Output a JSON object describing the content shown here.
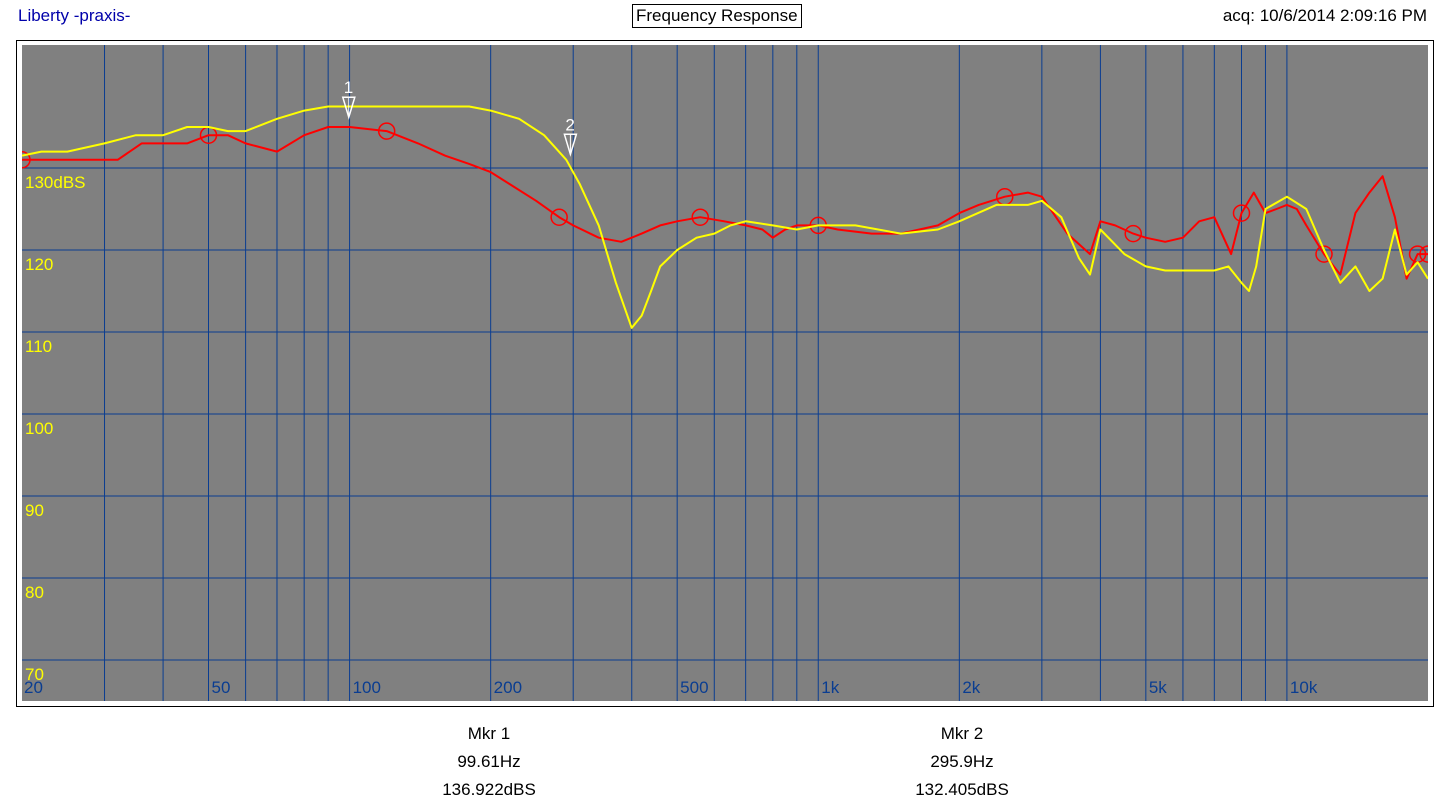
{
  "header": {
    "app_title": "Liberty -praxis-",
    "chart_title": "Frequency Response",
    "acquired": "acq: 10/6/2014 2:09:16 PM"
  },
  "chart_data": {
    "type": "line",
    "title": "Frequency Response",
    "x_scale": "log",
    "xlim": [
      20,
      20000
    ],
    "ylim": [
      65,
      145
    ],
    "grid": true,
    "x_ticks": [
      {
        "value": 20,
        "label": "20"
      },
      {
        "value": 50,
        "label": "50"
      },
      {
        "value": 100,
        "label": "100"
      },
      {
        "value": 200,
        "label": "200"
      },
      {
        "value": 500,
        "label": "500"
      },
      {
        "value": 1000,
        "label": "1k"
      },
      {
        "value": 2000,
        "label": "2k"
      },
      {
        "value": 5000,
        "label": "5k"
      },
      {
        "value": 10000,
        "label": "10k"
      }
    ],
    "y_ticks": [
      {
        "value": 130,
        "label": "130dBS"
      },
      {
        "value": 120,
        "label": "120"
      },
      {
        "value": 110,
        "label": "110"
      },
      {
        "value": 100,
        "label": "100"
      },
      {
        "value": 90,
        "label": "90"
      },
      {
        "value": 80,
        "label": "80"
      },
      {
        "value": 70,
        "label": "70"
      }
    ],
    "colors": {
      "background": "#808080",
      "grid": "#0a3d91",
      "y_tick_text": "#ffff00",
      "x_tick_text": "#0a3d91",
      "marker": "#ffffff"
    },
    "series": [
      {
        "color": "#ff0000",
        "marker_symbol": "circle",
        "x": [
          20,
          24,
          28,
          32,
          36,
          40,
          45,
          50,
          55,
          60,
          70,
          80,
          90,
          100,
          120,
          140,
          160,
          180,
          200,
          220,
          250,
          280,
          300,
          340,
          380,
          420,
          460,
          500,
          560,
          630,
          700,
          760,
          800,
          850,
          900,
          1000,
          1100,
          1300,
          1500,
          1800,
          2000,
          2200,
          2500,
          2800,
          3000,
          3400,
          3800,
          4000,
          4300,
          4700,
          5000,
          5500,
          6000,
          6500,
          7000,
          7600,
          8000,
          8500,
          9000,
          9500,
          10000,
          10500,
          11000,
          12000,
          13000,
          14000,
          15000,
          16000,
          17000,
          18000,
          19000,
          20000
        ],
        "y": [
          131,
          131,
          131,
          131,
          133,
          133,
          133,
          134,
          134,
          133,
          132,
          134,
          135,
          135,
          134.5,
          133,
          131.5,
          130.5,
          129.5,
          128,
          126,
          124,
          123,
          121.5,
          121,
          122,
          123,
          123.5,
          124,
          123.5,
          123,
          122.5,
          121.5,
          122.5,
          123,
          123,
          122.5,
          122,
          122,
          123,
          124.5,
          125.5,
          126.5,
          127,
          126.5,
          122,
          119.5,
          123.5,
          123,
          122,
          121.5,
          121,
          121.5,
          123.5,
          124,
          119.5,
          124.5,
          127,
          124.5,
          125,
          125.5,
          125,
          123,
          119.5,
          117,
          124.5,
          127,
          129,
          124,
          116.5,
          119.5,
          119.5
        ]
      },
      {
        "color": "#ffff00",
        "marker_symbol": "none",
        "x": [
          20,
          22,
          25,
          30,
          35,
          40,
          45,
          50,
          55,
          60,
          70,
          80,
          90,
          100,
          120,
          150,
          180,
          200,
          230,
          260,
          290,
          310,
          340,
          370,
          400,
          420,
          440,
          460,
          500,
          550,
          600,
          650,
          700,
          800,
          900,
          1000,
          1200,
          1500,
          1800,
          2000,
          2400,
          2800,
          3000,
          3300,
          3600,
          3800,
          4000,
          4500,
          5000,
          5500,
          6000,
          7000,
          7500,
          8000,
          8300,
          8600,
          9000,
          10000,
          11000,
          12000,
          13000,
          14000,
          15000,
          16000,
          17000,
          18000,
          19000,
          20000
        ],
        "y": [
          131.5,
          132,
          132,
          133,
          134,
          134,
          135,
          135,
          134.5,
          134.5,
          136,
          137,
          137.5,
          137.5,
          137.5,
          137.5,
          137.5,
          137,
          136,
          134,
          131,
          128,
          123,
          116,
          110.5,
          112,
          115,
          118,
          120,
          121.5,
          122,
          123,
          123.5,
          123,
          122.5,
          123,
          123,
          122,
          122.5,
          123.5,
          125.5,
          125.5,
          126,
          124,
          119,
          117,
          122.5,
          119.5,
          118,
          117.5,
          117.5,
          117.5,
          118,
          116,
          115,
          118,
          125,
          126.5,
          125,
          120,
          116,
          118,
          115,
          116.5,
          122.5,
          117,
          118.5,
          116.5
        ]
      }
    ],
    "markers": [
      {
        "label": "1",
        "freq_hz": 99.61,
        "level_dbs": 136.922
      },
      {
        "label": "2",
        "freq_hz": 295.9,
        "level_dbs": 132.405
      }
    ]
  },
  "markers_readout": [
    {
      "name": "Mkr 1",
      "freq": "99.61Hz",
      "level": "136.922dBS"
    },
    {
      "name": "Mkr 2",
      "freq": "295.9Hz",
      "level": "132.405dBS"
    }
  ]
}
